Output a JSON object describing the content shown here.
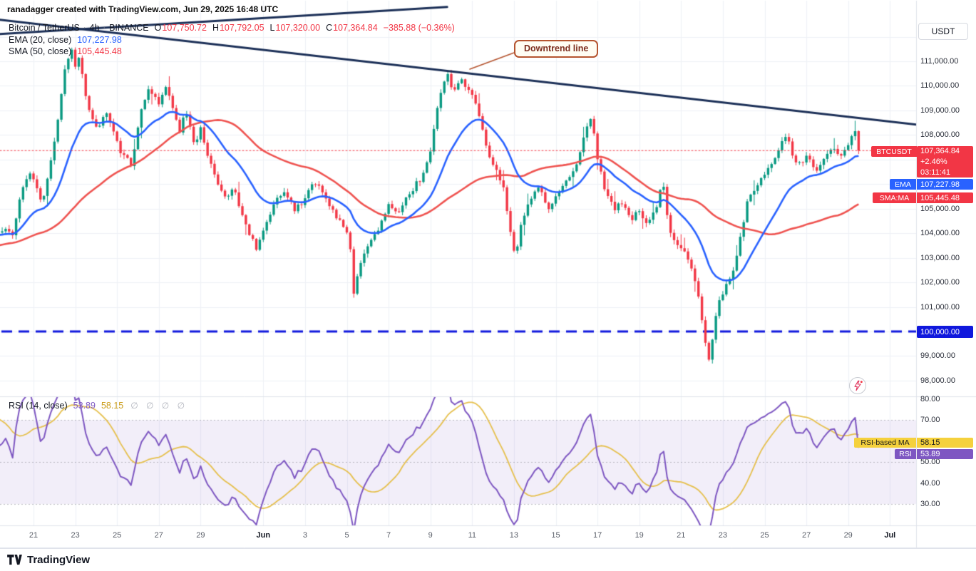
{
  "attribution": "ranadagger created with TradingView.com, Jun 29, 2025 16:48 UTC",
  "legend": {
    "symbol": "Bitcoin / TetherUS",
    "sep": "·",
    "interval": "4h",
    "exchange": "BINANCE",
    "o_label": "O",
    "o_value": "107,750.72",
    "h_label": "H",
    "h_value": "107,792.05",
    "l_label": "L",
    "l_value": "107,320.00",
    "c_label": "C",
    "c_value": "107,364.84",
    "change": "−385.88 (−0.36%)",
    "ema_label": "EMA (20, close)",
    "ema_value": "107,227.98",
    "sma_label": "SMA (50, close)",
    "sma_value": "105,445.48",
    "rsi_label": "RSI (14, close)",
    "rsi_value": "53.89",
    "rsi_ma_value": "58.15",
    "rsi_ghosts": "∅ ∅ ∅ ∅"
  },
  "annotation": {
    "downtrend_label": "Downtrend line"
  },
  "price_scale": {
    "currency_button": "USDT",
    "badges": {
      "symbol_name": "BTCUSDT",
      "last_price": "107,364.84",
      "change_pct": "+2.46%",
      "countdown": "03:11:41",
      "ema_name": "EMA",
      "ema_value": "107,227.98",
      "sma_name": "SMA:MA",
      "sma_value": "105,445.48",
      "level_value": "100,000.00",
      "rsi_ma_name": "RSI-based MA",
      "rsi_ma_value": "58.15",
      "rsi_name": "RSI",
      "rsi_value": "53.89"
    }
  },
  "footer": {
    "brand": "TradingView"
  },
  "colors": {
    "up": "#089981",
    "down": "#f23645",
    "ema_blue": "#2962ff",
    "sma_red": "#ef5350",
    "rsi_purple": "#7e57c2",
    "rsi_ma_yellow": "#e6c04d",
    "badge_yellow": "#f5d13d",
    "trendline_navy": "#1b2f57",
    "support_blue": "#1018dd",
    "callout_brown": "#b5542f",
    "grid": "#eef1f6",
    "separator": "#e0e3eb",
    "band_fill": "rgba(126,87,194,0.10)"
  },
  "chart_data": {
    "type": "candlestick",
    "title": "Bitcoin / TetherUS · 4h · BINANCE",
    "interval": "4h",
    "exchange": "BINANCE",
    "quote_currency": "USDT",
    "last": {
      "open": 107750.72,
      "high": 107792.05,
      "low": 107320.0,
      "close": 107364.84,
      "change": -385.88,
      "change_pct": -0.36
    },
    "indicators": {
      "ema20": 107227.98,
      "sma50": 105445.48,
      "rsi14": 53.89,
      "rsi_based_ma14": 58.15
    },
    "support_level": 100000,
    "price_axis": {
      "min": 97500,
      "max": 112800
    },
    "rsi_axis": {
      "min": 25,
      "max": 82
    },
    "candles_per_day": 6,
    "price_axis_ticks": [
      {
        "v": 111000,
        "label": "111,000.00"
      },
      {
        "v": 110000,
        "label": "110,000.00"
      },
      {
        "v": 109000,
        "label": "109,000.00"
      },
      {
        "v": 108000,
        "label": "108,000.00"
      },
      {
        "v": 105000,
        "label": "105,000.00"
      },
      {
        "v": 104000,
        "label": "104,000.00"
      },
      {
        "v": 103000,
        "label": "103,000.00"
      },
      {
        "v": 102000,
        "label": "102,000.00"
      },
      {
        "v": 101000,
        "label": "101,000.00"
      },
      {
        "v": 99000,
        "label": "99,000.00"
      },
      {
        "v": 98000,
        "label": "98,000.00"
      }
    ],
    "rsi_axis_ticks": [
      {
        "v": 80,
        "label": "80.00"
      },
      {
        "v": 70,
        "label": "70.00"
      },
      {
        "v": 50,
        "label": "50.00"
      },
      {
        "v": 40,
        "label": "40.00"
      },
      {
        "v": 30,
        "label": "30.00"
      }
    ],
    "time_axis_ticks": [
      {
        "label": "21",
        "day": 1
      },
      {
        "label": "23",
        "day": 3
      },
      {
        "label": "25",
        "day": 5
      },
      {
        "label": "27",
        "day": 7
      },
      {
        "label": "29",
        "day": 9
      },
      {
        "label": "Jun",
        "day": 12,
        "month": true
      },
      {
        "label": "3",
        "day": 14
      },
      {
        "label": "5",
        "day": 16
      },
      {
        "label": "7",
        "day": 18
      },
      {
        "label": "9",
        "day": 20
      },
      {
        "label": "11",
        "day": 22
      },
      {
        "label": "13",
        "day": 24
      },
      {
        "label": "15",
        "day": 26
      },
      {
        "label": "17",
        "day": 28
      },
      {
        "label": "19",
        "day": 30
      },
      {
        "label": "21",
        "day": 32
      },
      {
        "label": "23",
        "day": 34
      },
      {
        "label": "25",
        "day": 36
      },
      {
        "label": "27",
        "day": 38
      },
      {
        "label": "29",
        "day": 40
      },
      {
        "label": "Jul",
        "day": 42,
        "month": true
      }
    ],
    "trendlines": [
      {
        "name": "downtrend-line-main",
        "from": {
          "day": -0.62,
          "price": 112690
        },
        "to": {
          "day": 43.3,
          "price": 108420
        }
      },
      {
        "name": "downtrend-line-upper",
        "from": {
          "day": -0.62,
          "price": 112110
        },
        "to": {
          "day": 20.8,
          "price": 113210
        }
      }
    ],
    "price_path_day_close": [
      [
        -12,
        99800
      ],
      [
        -10,
        101500
      ],
      [
        -8,
        103200
      ],
      [
        -6,
        103500
      ],
      [
        -4,
        103000
      ],
      [
        -3,
        103600
      ],
      [
        -2,
        104700
      ],
      [
        -1,
        103900
      ],
      [
        -0.4,
        104200
      ],
      [
        0,
        104000
      ],
      [
        0.4,
        105600
      ],
      [
        0.8,
        106600
      ],
      [
        1.1,
        105900
      ],
      [
        1.4,
        105200
      ],
      [
        1.8,
        106700
      ],
      [
        2.1,
        108200
      ],
      [
        2.45,
        110400
      ],
      [
        2.8,
        111600
      ],
      [
        3.0,
        110800
      ],
      [
        3.2,
        111300
      ],
      [
        3.5,
        109600
      ],
      [
        3.8,
        108600
      ],
      [
        4.1,
        108200
      ],
      [
        4.5,
        109000
      ],
      [
        4.9,
        107900
      ],
      [
        5.3,
        107100
      ],
      [
        5.7,
        106800
      ],
      [
        6.0,
        108300
      ],
      [
        6.3,
        109500
      ],
      [
        6.6,
        109900
      ],
      [
        7.0,
        109200
      ],
      [
        7.3,
        110100
      ],
      [
        7.7,
        108900
      ],
      [
        8.0,
        108200
      ],
      [
        8.3,
        109000
      ],
      [
        8.7,
        107700
      ],
      [
        9.0,
        108200
      ],
      [
        9.4,
        107000
      ],
      [
        9.8,
        106000
      ],
      [
        10.2,
        105500
      ],
      [
        10.6,
        105900
      ],
      [
        11.0,
        104700
      ],
      [
        11.4,
        103800
      ],
      [
        11.7,
        103400
      ],
      [
        12.0,
        104200
      ],
      [
        12.5,
        105200
      ],
      [
        13.0,
        105700
      ],
      [
        13.5,
        104900
      ],
      [
        14.0,
        105400
      ],
      [
        14.4,
        106100
      ],
      [
        14.8,
        105700
      ],
      [
        15.3,
        104900
      ],
      [
        15.8,
        104400
      ],
      [
        16.1,
        103900
      ],
      [
        16.35,
        101400
      ],
      [
        16.6,
        102700
      ],
      [
        17.0,
        103400
      ],
      [
        17.5,
        104200
      ],
      [
        18.0,
        105100
      ],
      [
        18.5,
        104900
      ],
      [
        19.0,
        105600
      ],
      [
        19.5,
        106200
      ],
      [
        20.0,
        107300
      ],
      [
        20.4,
        109500
      ],
      [
        20.8,
        110500
      ],
      [
        21.1,
        109800
      ],
      [
        21.5,
        110200
      ],
      [
        21.9,
        109900
      ],
      [
        22.3,
        108800
      ],
      [
        22.7,
        107400
      ],
      [
        23.1,
        106700
      ],
      [
        23.5,
        105900
      ],
      [
        23.9,
        103600
      ],
      [
        24.1,
        103000
      ],
      [
        24.4,
        104600
      ],
      [
        24.8,
        105400
      ],
      [
        25.2,
        105900
      ],
      [
        25.6,
        105000
      ],
      [
        26.0,
        105400
      ],
      [
        26.5,
        106100
      ],
      [
        27.0,
        106700
      ],
      [
        27.4,
        108200
      ],
      [
        27.7,
        108700
      ],
      [
        28.0,
        107000
      ],
      [
        28.4,
        105600
      ],
      [
        28.8,
        105000
      ],
      [
        29.2,
        105200
      ],
      [
        29.6,
        104600
      ],
      [
        30.0,
        104900
      ],
      [
        30.4,
        104400
      ],
      [
        30.8,
        105000
      ],
      [
        31.1,
        106300
      ],
      [
        31.4,
        104300
      ],
      [
        31.8,
        103500
      ],
      [
        32.2,
        103200
      ],
      [
        32.6,
        102400
      ],
      [
        32.9,
        101200
      ],
      [
        33.2,
        99200
      ],
      [
        33.35,
        98750
      ],
      [
        33.7,
        100900
      ],
      [
        34.0,
        101600
      ],
      [
        34.3,
        102100
      ],
      [
        34.6,
        102800
      ],
      [
        34.9,
        104200
      ],
      [
        35.2,
        105300
      ],
      [
        35.6,
        106000
      ],
      [
        36.0,
        106300
      ],
      [
        36.4,
        107000
      ],
      [
        36.8,
        107600
      ],
      [
        37.1,
        107900
      ],
      [
        37.4,
        107000
      ],
      [
        37.8,
        106800
      ],
      [
        38.1,
        107200
      ],
      [
        38.5,
        106500
      ],
      [
        38.9,
        107100
      ],
      [
        39.3,
        107400
      ],
      [
        39.7,
        107100
      ],
      [
        40.0,
        107500
      ],
      [
        40.3,
        108300
      ],
      [
        40.5,
        107700
      ],
      [
        40.62,
        107364.84
      ]
    ]
  }
}
